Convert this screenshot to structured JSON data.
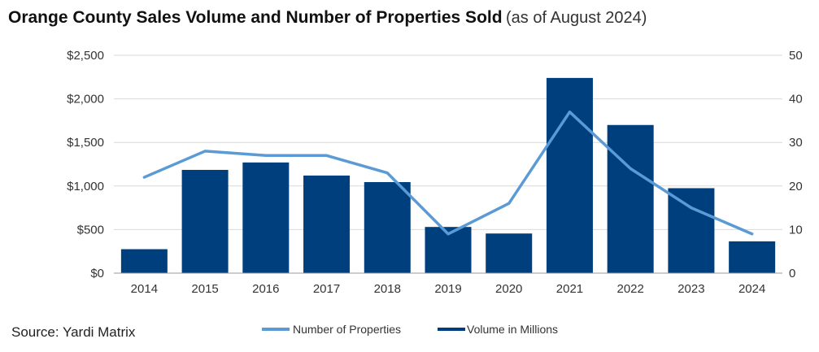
{
  "header": {
    "title": "Orange County Sales Volume and Number of Properties Sold",
    "subtitle": "(as of August 2024)"
  },
  "footer": {
    "source": "Source: Yardi Matrix"
  },
  "colors": {
    "bar": "#003f7d",
    "line": "#5b9bd5",
    "grid": "#d9d9d9",
    "axis": "#999999"
  },
  "chart_data": {
    "type": "bar",
    "title": "Orange County Sales Volume and Number of Properties Sold",
    "categories": [
      "2014",
      "2015",
      "2016",
      "2017",
      "2018",
      "2019",
      "2020",
      "2021",
      "2022",
      "2023",
      "2024"
    ],
    "series": [
      {
        "name": "Volume in Millions",
        "type": "bar",
        "axis": "left",
        "values": [
          275,
          1185,
          1270,
          1120,
          1045,
          530,
          455,
          2240,
          1700,
          975,
          365
        ]
      },
      {
        "name": "Number of Properties",
        "type": "line",
        "axis": "right",
        "values": [
          22,
          28,
          27,
          27,
          23,
          9,
          16,
          37,
          24,
          15,
          9
        ]
      }
    ],
    "y_left": {
      "min": 0,
      "max": 2500,
      "step": 500,
      "tick_labels": [
        "$0",
        "$500",
        "$1,000",
        "$1,500",
        "$2,000",
        "$2,500"
      ]
    },
    "y_right": {
      "min": 0,
      "max": 50,
      "step": 10,
      "tick_labels": [
        "0",
        "10",
        "20",
        "30",
        "40",
        "50"
      ]
    },
    "grid": true,
    "legend": {
      "position": "bottom",
      "items": [
        "Number of Properties",
        "Volume in Millions"
      ]
    }
  }
}
